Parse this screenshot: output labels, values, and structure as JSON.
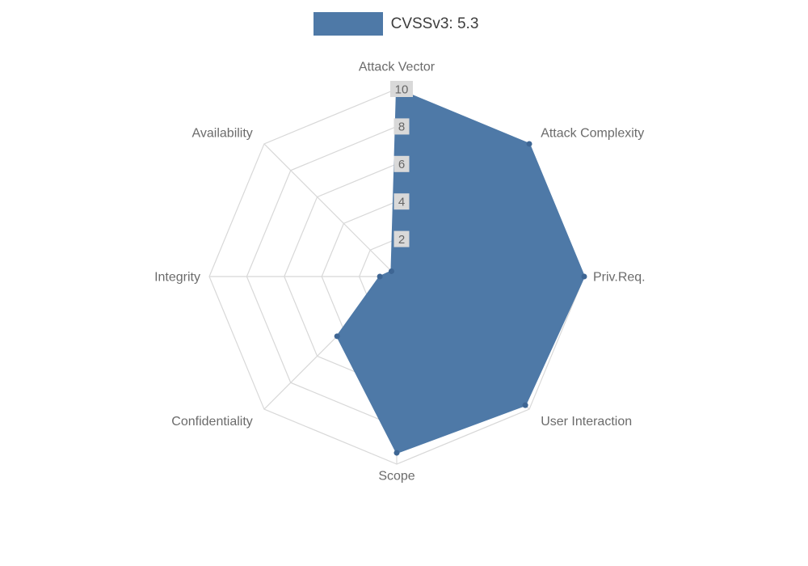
{
  "legend": {
    "label": "CVSSv3: 5.3"
  },
  "chart_data": {
    "type": "radar",
    "title": "CVSSv3: 5.3",
    "categories": [
      "Attack Vector",
      "Attack Complexity",
      "Priv.Req.",
      "User Interaction",
      "Scope",
      "Confidentiality",
      "Integrity",
      "Availability"
    ],
    "series": [
      {
        "name": "CVSSv3: 5.3",
        "values": [
          10,
          10,
          10,
          9.7,
          9.4,
          4.5,
          0.9,
          0.4
        ]
      }
    ],
    "ticks": [
      2,
      4,
      6,
      8,
      10
    ],
    "rmax": 10,
    "grid": "polygon-web",
    "legend_position": "top",
    "colors": {
      "fill": "#4e79a7",
      "point": "#3e6694",
      "grid": "#d8d8d8",
      "tick_text": "#666666",
      "tick_backdrop": "#d9d9d9",
      "label_text": "#6b6b6b",
      "legend_text": "#3d3d3d"
    }
  }
}
